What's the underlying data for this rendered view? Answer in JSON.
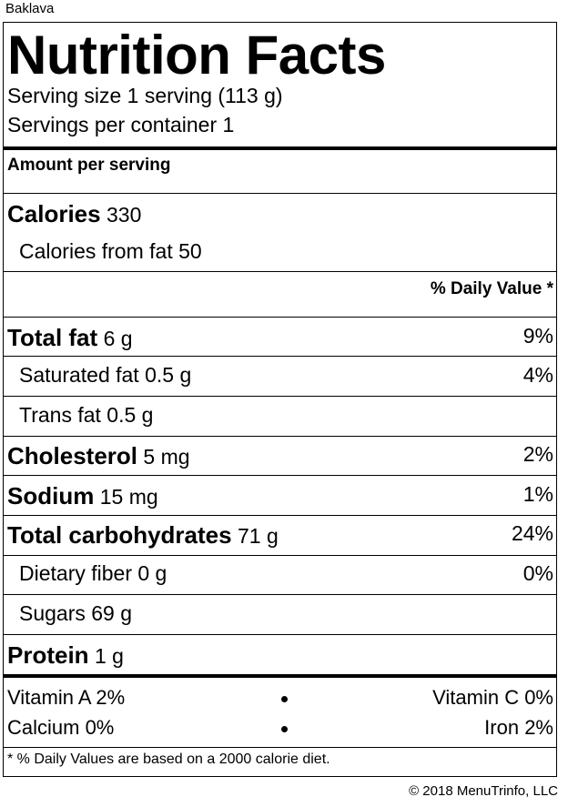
{
  "product_name": "Baklava",
  "title": "Nutrition Facts",
  "serving_size": "Serving size 1 serving (113 g)",
  "servings_per_container": "Servings per container 1",
  "amount_per_serving": "Amount per serving",
  "calories": {
    "label": "Calories",
    "value": "330"
  },
  "calories_from_fat": "Calories from fat 50",
  "daily_value_header": "% Daily Value *",
  "nutrients": [
    {
      "label": "Total fat",
      "amount": "6 g",
      "dv": "9%"
    },
    {
      "label": "Saturated fat",
      "amount": "0.5 g",
      "dv": "4%"
    },
    {
      "label": "Trans fat",
      "amount": "0.5 g",
      "dv": ""
    },
    {
      "label": "Cholesterol",
      "amount": "5 mg",
      "dv": "2%"
    },
    {
      "label": "Sodium",
      "amount": "15 mg",
      "dv": "1%"
    },
    {
      "label": "Total carbohydrates",
      "amount": "71 g",
      "dv": "24%"
    },
    {
      "label": "Dietary fiber",
      "amount": "0 g",
      "dv": "0%"
    },
    {
      "label": "Sugars",
      "amount": "69 g",
      "dv": ""
    },
    {
      "label": "Protein",
      "amount": "1 g",
      "dv": ""
    }
  ],
  "vitamins": [
    {
      "left": "Vitamin A 2%",
      "right": "Vitamin C 0%"
    },
    {
      "left": "Calcium 0%",
      "right": "Iron 2%"
    }
  ],
  "footnote": "* % Daily Values are based on a 2000 calorie diet.",
  "copyright": "© 2018 MenuTrinfo, LLC"
}
